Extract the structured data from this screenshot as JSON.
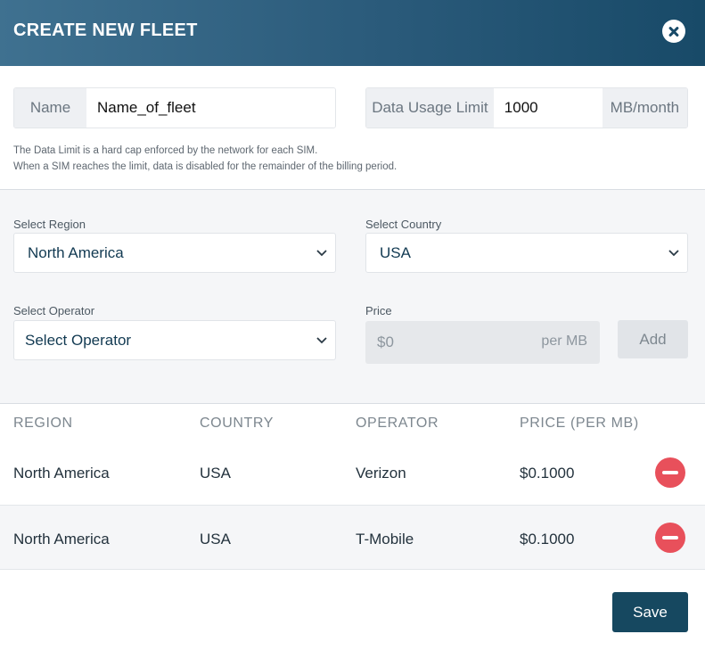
{
  "header": {
    "title": "CREATE NEW FLEET"
  },
  "name_field": {
    "label": "Name",
    "value": "Name_of_fleet"
  },
  "data_limit": {
    "label": "Data Usage Limit",
    "value": "1000",
    "unit": "MB/month"
  },
  "help": {
    "line1": "The Data Limit is a hard cap enforced by the network for each SIM.",
    "line2": "When a SIM reaches the limit, data is disabled for the remainder of the billing period."
  },
  "form": {
    "region": {
      "label": "Select Region",
      "value": "North America"
    },
    "country": {
      "label": "Select Country",
      "value": "USA"
    },
    "operator": {
      "label": "Select Operator",
      "value": "Select Operator"
    },
    "price": {
      "label": "Price",
      "value": "$0",
      "unit": "per MB"
    },
    "add_label": "Add"
  },
  "table": {
    "headers": {
      "region": "REGION",
      "country": "COUNTRY",
      "operator": "OPERATOR",
      "price": "PRICE (PER MB)"
    },
    "rows": [
      {
        "region": "North America",
        "country": "USA",
        "operator": "Verizon",
        "price": "$0.1000"
      },
      {
        "region": "North America",
        "country": "USA",
        "operator": "T-Mobile",
        "price": "$0.1000"
      }
    ]
  },
  "save_label": "Save",
  "colors": {
    "header_dark": "#184a68",
    "remove_red": "#e8505b",
    "save_button": "#164860"
  }
}
